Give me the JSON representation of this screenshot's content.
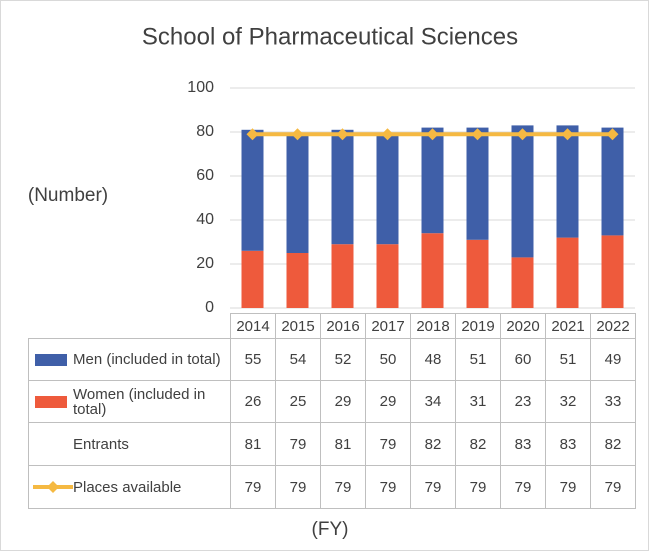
{
  "chart_data": {
    "type": "bar",
    "title": "School of Pharmaceutical Sciences",
    "y_label": "(Number)",
    "x_label": "(FY)",
    "categories": [
      "2014",
      "2015",
      "2016",
      "2017",
      "2018",
      "2019",
      "2020",
      "2021",
      "2022"
    ],
    "series": [
      {
        "name": "Men (included in total)",
        "color": "#3f5fa8",
        "values": [
          55,
          54,
          52,
          50,
          48,
          51,
          60,
          51,
          49
        ]
      },
      {
        "name": "Women (included in total)",
        "color": "#ee5a3c",
        "values": [
          26,
          25,
          29,
          29,
          34,
          31,
          23,
          32,
          33
        ]
      },
      {
        "name": "Places available",
        "type": "line",
        "color": "#f5b942",
        "values": [
          79,
          79,
          79,
          79,
          79,
          79,
          79,
          79,
          79
        ]
      }
    ],
    "totals": {
      "name": "Entrants",
      "values": [
        81,
        79,
        81,
        79,
        82,
        82,
        83,
        83,
        82
      ]
    },
    "ylim": [
      0,
      100
    ],
    "yticks": [
      0,
      20,
      40,
      60,
      80,
      100
    ],
    "grid": true
  }
}
